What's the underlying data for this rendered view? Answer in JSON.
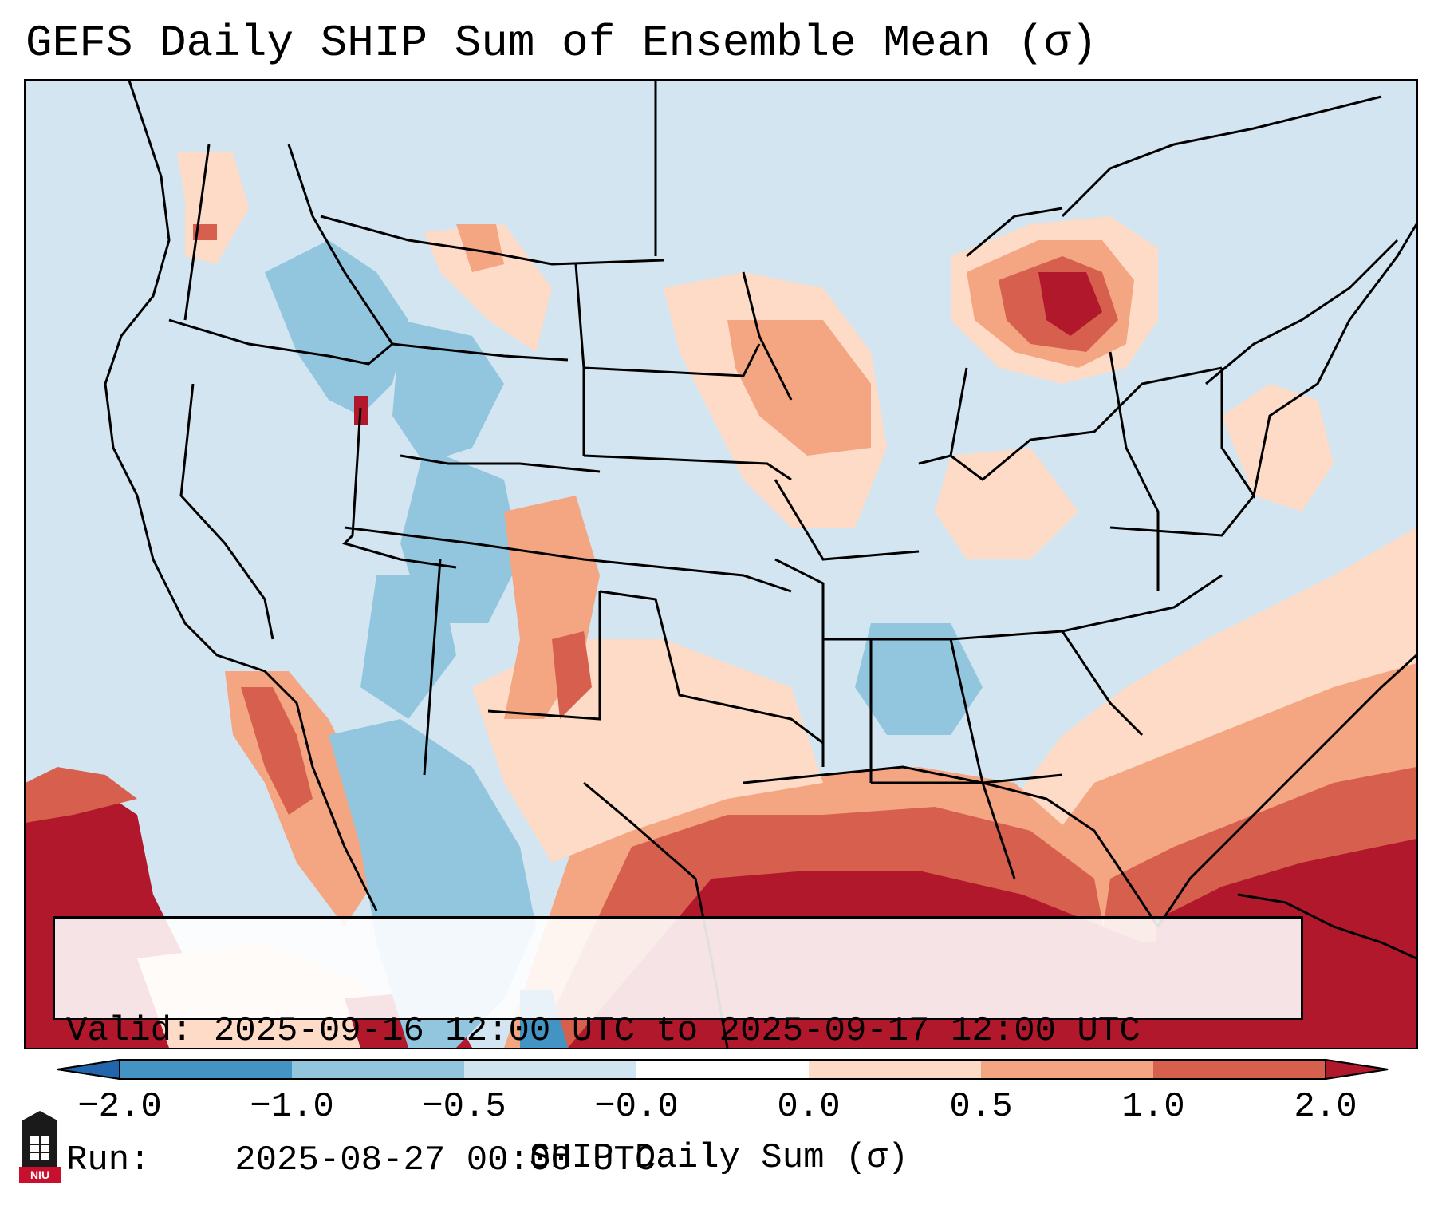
{
  "title": "GEFS Daily SHIP Sum of Ensemble Mean (σ)",
  "map": {
    "region": "Continental United States",
    "projection": "Lambert conformal",
    "field": "SHIP daily sum anomaly"
  },
  "info_box": {
    "valid_label": "Valid:",
    "valid_value": "2025-09-16 12:00 UTC to 2025-09-17 12:00 UTC",
    "run_label": "Run:",
    "run_value": "2025-08-27 00:00 UTC"
  },
  "colorbar": {
    "label": "SHIP Daily Sum (σ)",
    "ticks": [
      "−2.0",
      "−1.0",
      "−0.5",
      "−0.0",
      "0.0",
      "0.5",
      "1.0",
      "2.0"
    ],
    "colors": [
      "#2166ac",
      "#4393c3",
      "#92c5de",
      "#d1e5f0",
      "#ffffff",
      "#fddbc7",
      "#f4a582",
      "#d6604d",
      "#b2182b"
    ]
  },
  "logo": {
    "text": "NIU"
  },
  "colors": {
    "ocean_neutral": "#d2e5f0",
    "strong_positive": "#b2182b",
    "positive": "#d6604d",
    "weak_positive": "#f4a582",
    "slight_positive": "#fddbc7",
    "slight_negative": "#92c5de",
    "negative": "#4393c3"
  }
}
